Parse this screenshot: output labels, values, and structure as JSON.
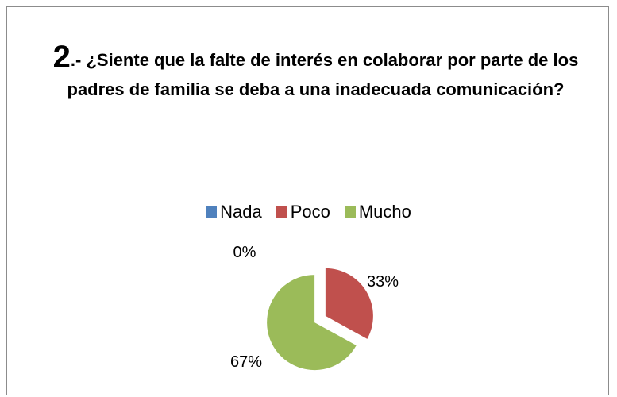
{
  "chart_data": {
    "type": "pie",
    "title_number": "2",
    "title_text": ".- ¿Siente que la falte de interés en colaborar por parte de los padres de familia se deba a una inadecuada comunicación?",
    "categories": [
      "Nada",
      "Poco",
      "Mucho"
    ],
    "values": [
      0,
      33,
      67
    ],
    "data_labels": [
      "0%",
      "33%",
      "67%"
    ],
    "colors": [
      "#4f81bd",
      "#c0504d",
      "#9bbb59"
    ],
    "legend_position": "top",
    "exploded": true
  }
}
